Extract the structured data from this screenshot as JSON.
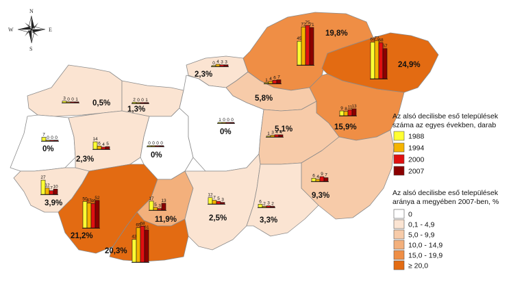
{
  "compass": {
    "n": "N",
    "s": "S",
    "e": "E",
    "w": "W"
  },
  "legend_bars": {
    "title_line1": "Az alsó decilisbe eső települések",
    "title_line2": "száma az egyes években, darab",
    "items": [
      {
        "label": "1988",
        "color": "#ffff33"
      },
      {
        "label": "1994",
        "color": "#f5b400"
      },
      {
        "label": "2000",
        "color": "#e01010"
      },
      {
        "label": "2007",
        "color": "#8b0000"
      }
    ]
  },
  "legend_share": {
    "title_line1": "Az alsó decilisbe eső települések",
    "title_line2": "aránya a megyében 2007-ben, %",
    "items": [
      {
        "label": "0",
        "color": "#ffffff"
      },
      {
        "label": "0,1 - 4,9",
        "color": "#fbe4d2"
      },
      {
        "label": "5,0 - 9,9",
        "color": "#f7cba9"
      },
      {
        "label": "10,0 - 14,9",
        "color": "#f3b07c"
      },
      {
        "label": "15,0 - 19,9",
        "color": "#ef8e45"
      },
      {
        "label": "≥ 20,0",
        "color": "#e36b12"
      }
    ]
  },
  "counties": [
    {
      "id": "gyor-moson-sopron",
      "pct_value": 0.5,
      "pct": "0,5%",
      "bars": [
        3,
        0,
        0,
        1
      ]
    },
    {
      "id": "komarom-esztergom",
      "pct_value": 1.3,
      "pct": "1,3%",
      "bars": [
        2,
        0,
        0,
        1
      ]
    },
    {
      "id": "nograd",
      "pct_value": 2.3,
      "pct": "2,3%",
      "bars": [
        0,
        4,
        3,
        3
      ]
    },
    {
      "id": "borsod-abauj-zemplen",
      "pct_value": 19.8,
      "pct": "19,8%",
      "bars": [
        45,
        72,
        75,
        71
      ]
    },
    {
      "id": "szabolcs-szatmar-bereg",
      "pct_value": 24.9,
      "pct": "24,9%",
      "bars": [
        69,
        72,
        68,
        57
      ]
    },
    {
      "id": "heves",
      "pct_value": 5.8,
      "pct": "5,8%",
      "bars": [
        1,
        4,
        6,
        7
      ]
    },
    {
      "id": "hajdu-bihar",
      "pct_value": 15.9,
      "pct": "15,9%",
      "bars": [
        9,
        8,
        11,
        13
      ]
    },
    {
      "id": "vas",
      "pct_value": 0,
      "pct": "0%",
      "bars": [
        7,
        0,
        0,
        0
      ]
    },
    {
      "id": "veszprem",
      "pct_value": 2.3,
      "pct": "2,3%",
      "bars": [
        14,
        6,
        4,
        5
      ]
    },
    {
      "id": "fejer",
      "pct_value": 0,
      "pct": "0%",
      "bars": [
        0,
        0,
        0,
        0
      ]
    },
    {
      "id": "pest",
      "pct_value": 0,
      "pct": "0%",
      "bars": [
        1,
        0,
        0,
        0
      ]
    },
    {
      "id": "jasz-nagykun-szolnok",
      "pct_value": 5.1,
      "pct": "5,1%",
      "bars": [
        1,
        3,
        4,
        4
      ]
    },
    {
      "id": "bekes",
      "pct_value": 9.3,
      "pct": "9,3%",
      "bars": [
        6,
        4,
        9,
        7
      ]
    },
    {
      "id": "zala",
      "pct_value": 3.9,
      "pct": "3,9%",
      "bars": [
        27,
        12,
        7,
        10
      ]
    },
    {
      "id": "somogy",
      "pct_value": 21.2,
      "pct": "21,2%",
      "bars": [
        50,
        47,
        46,
        52
      ]
    },
    {
      "id": "tolna",
      "pct_value": 11.9,
      "pct": "11,9%",
      "bars": [
        17,
        5,
        3,
        13
      ]
    },
    {
      "id": "baranya",
      "pct_value": 20.3,
      "pct": "20,3%",
      "bars": [
        43,
        65,
        68,
        61
      ]
    },
    {
      "id": "bacs-kiskun",
      "pct_value": 2.5,
      "pct": "2,5%",
      "bars": [
        12,
        7,
        5,
        3
      ]
    },
    {
      "id": "csongrad",
      "pct_value": 3.3,
      "pct": "3,3%",
      "bars": [
        6,
        2,
        3,
        2
      ]
    }
  ]
}
